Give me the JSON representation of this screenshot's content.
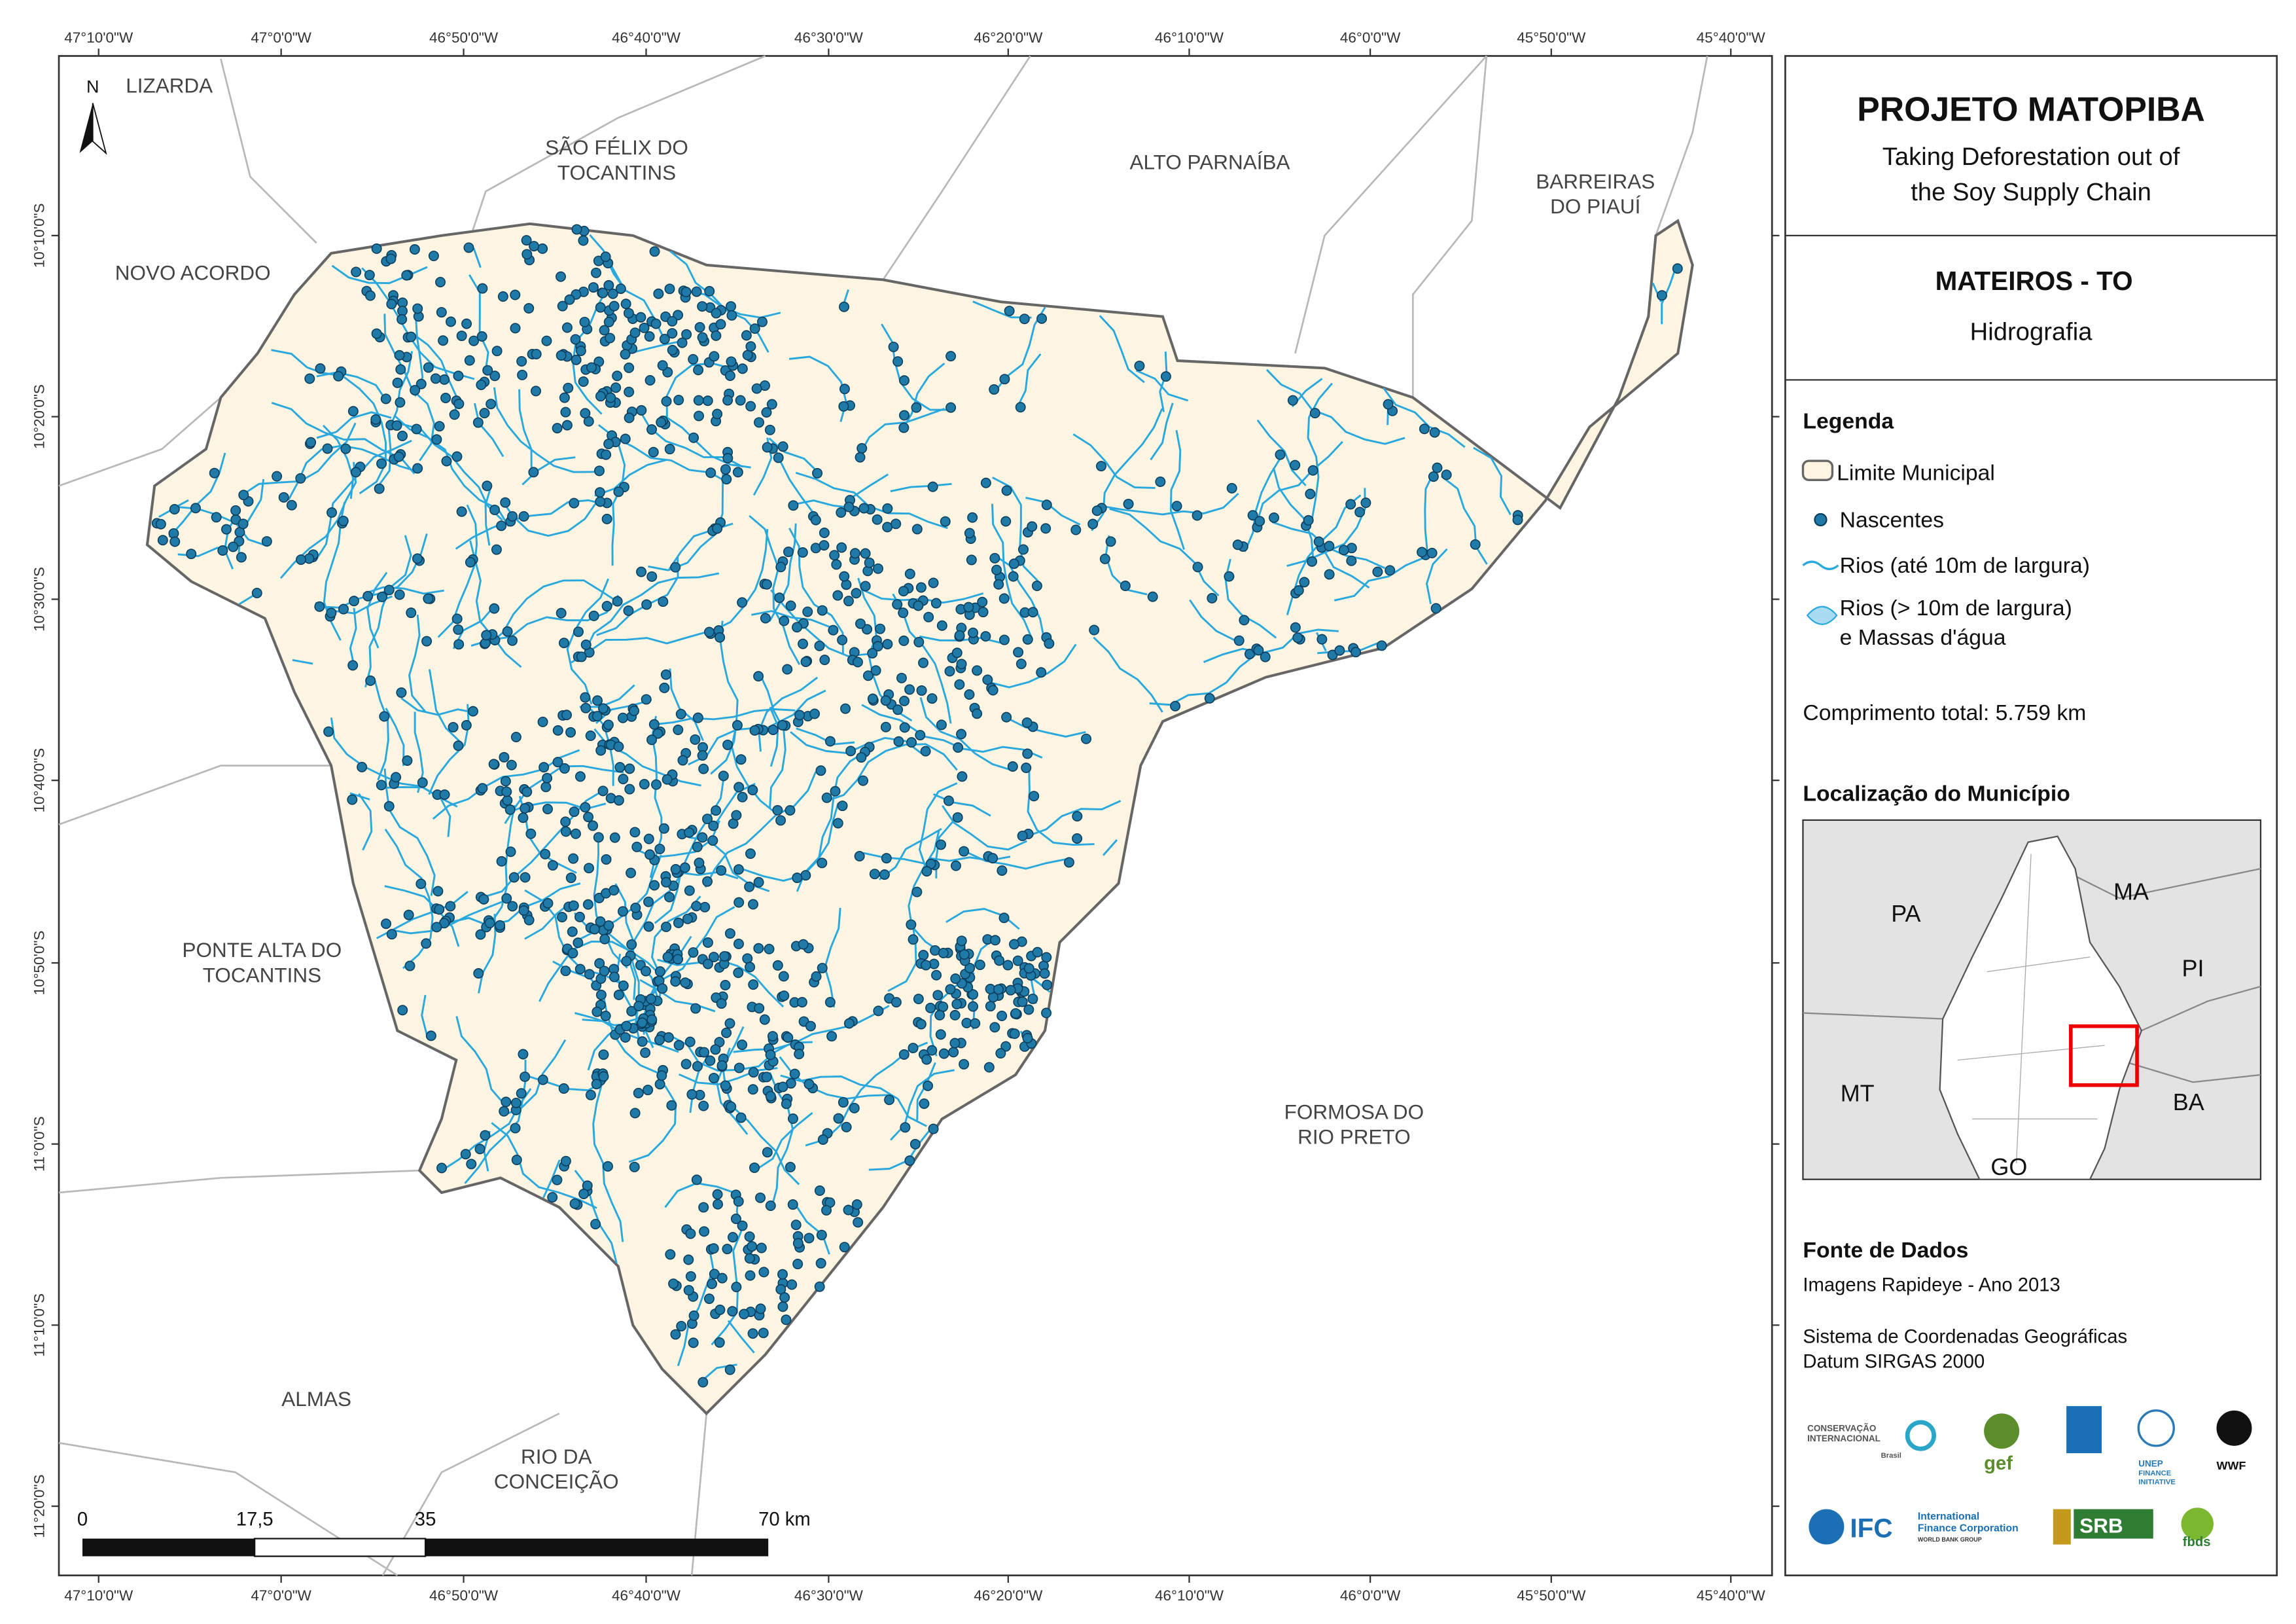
{
  "map": {
    "north": "N",
    "lon_labels": [
      "47°10'0\"W",
      "47°0'0\"W",
      "46°50'0\"W",
      "46°40'0\"W",
      "46°30'0\"W",
      "46°20'0\"W",
      "46°10'0\"W",
      "46°0'0\"W",
      "45°50'0\"W",
      "45°40'0\"W"
    ],
    "lat_labels": [
      "10°10'0\"S",
      "10°20'0\"S",
      "10°30'0\"S",
      "10°40'0\"S",
      "10°50'0\"S",
      "11°0'0\"S",
      "11°10'0\"S",
      "11°20'0\"S"
    ],
    "places": [
      {
        "lines": [
          "LIZARDA"
        ]
      },
      {
        "lines": [
          "SÃO FÉLIX DO",
          "TOCANTINS"
        ]
      },
      {
        "lines": [
          "ALTO PARNAÍBA"
        ]
      },
      {
        "lines": [
          "BARREIRAS",
          "DO PIAUÍ"
        ]
      },
      {
        "lines": [
          "NOVO ACORDO"
        ]
      },
      {
        "lines": [
          "PONTE ALTA DO",
          "TOCANTINS"
        ]
      },
      {
        "lines": [
          "FORMOSA DO",
          "RIO PRETO"
        ]
      },
      {
        "lines": [
          "ALMAS"
        ]
      },
      {
        "lines": [
          "RIO DA",
          "CONCEIÇÃO"
        ]
      }
    ],
    "scale_labels": [
      "0",
      "17,5",
      "35",
      "70 km"
    ]
  },
  "panel": {
    "title": "PROJETO MATOPIBA",
    "subtitle": [
      "Taking Deforestation out of",
      "the Soy Supply Chain"
    ],
    "municipality": "MATEIROS - TO",
    "theme": "Hidrografia",
    "legend_title": "Legenda",
    "legend": [
      "Limite Municipal",
      "Nascentes",
      "Rios (até 10m de largura)",
      "Rios (> 10m de largura)",
      "e Massas d'água"
    ],
    "total_length": "Comprimento total:  5.759 km",
    "location_title": "Localização do Município",
    "inset_labels": [
      "PA",
      "MA",
      "PI",
      "MT",
      "BA",
      "GO"
    ],
    "sources_title": "Fonte de Dados",
    "sources": [
      "Imagens Rapideye - Ano 2013",
      "Sistema de Coordenadas Geográficas",
      "Datum SIRGAS 2000"
    ],
    "logos": [
      "CONSERVAÇÃO",
      "INTERNACIONAL",
      "Brasil",
      "gef",
      "UNEP",
      "FINANCE",
      "INITIATIVE",
      "WWF",
      "IFC",
      "International",
      "Finance Corporation",
      "WORLD BANK GROUP",
      "SRB",
      "fbds"
    ]
  }
}
